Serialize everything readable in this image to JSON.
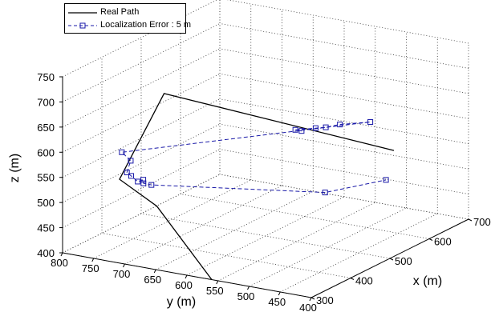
{
  "chart_data": {
    "type": "line3d",
    "title": "",
    "xlabel": "x (m)",
    "ylabel": "y (m)",
    "zlabel": "z (m)",
    "xlim": [
      300,
      700
    ],
    "ylim": [
      400,
      800
    ],
    "zlim": [
      400,
      750
    ],
    "xticks": [
      300,
      400,
      500,
      600,
      700
    ],
    "yticks": [
      400,
      450,
      500,
      550,
      600,
      650,
      700,
      750,
      800
    ],
    "zticks": [
      400,
      450,
      500,
      550,
      600,
      650,
      700,
      750
    ],
    "grid": true,
    "legend_position": "top-left",
    "series": [
      {
        "name": "Real Path",
        "style": "solid",
        "color": "#000000",
        "points": [
          [
            700,
            520,
            510
          ],
          [
            400,
            700,
            700
          ],
          [
            350,
            740,
            540
          ],
          [
            350,
            680,
            500
          ],
          [
            300,
            560,
            400
          ]
        ]
      },
      {
        "name": "Localization Error : 5 m",
        "style": "dashed",
        "marker": "square",
        "color": "#1a1aa8",
        "points": [
          [
            560,
            580,
            590
          ],
          [
            560,
            590,
            590
          ],
          [
            580,
            570,
            590
          ],
          [
            590,
            560,
            590
          ],
          [
            610,
            550,
            590
          ],
          [
            640,
            520,
            590
          ],
          [
            340,
            730,
            600
          ],
          [
            350,
            722,
            581
          ],
          [
            345,
            725,
            559
          ],
          [
            348,
            720,
            552
          ],
          [
            352,
            712,
            541
          ],
          [
            355,
            705,
            545
          ],
          [
            357,
            706,
            537
          ],
          [
            360,
            695,
            535
          ],
          [
            430,
            460,
            545
          ],
          [
            490,
            400,
            560
          ]
        ]
      }
    ]
  }
}
